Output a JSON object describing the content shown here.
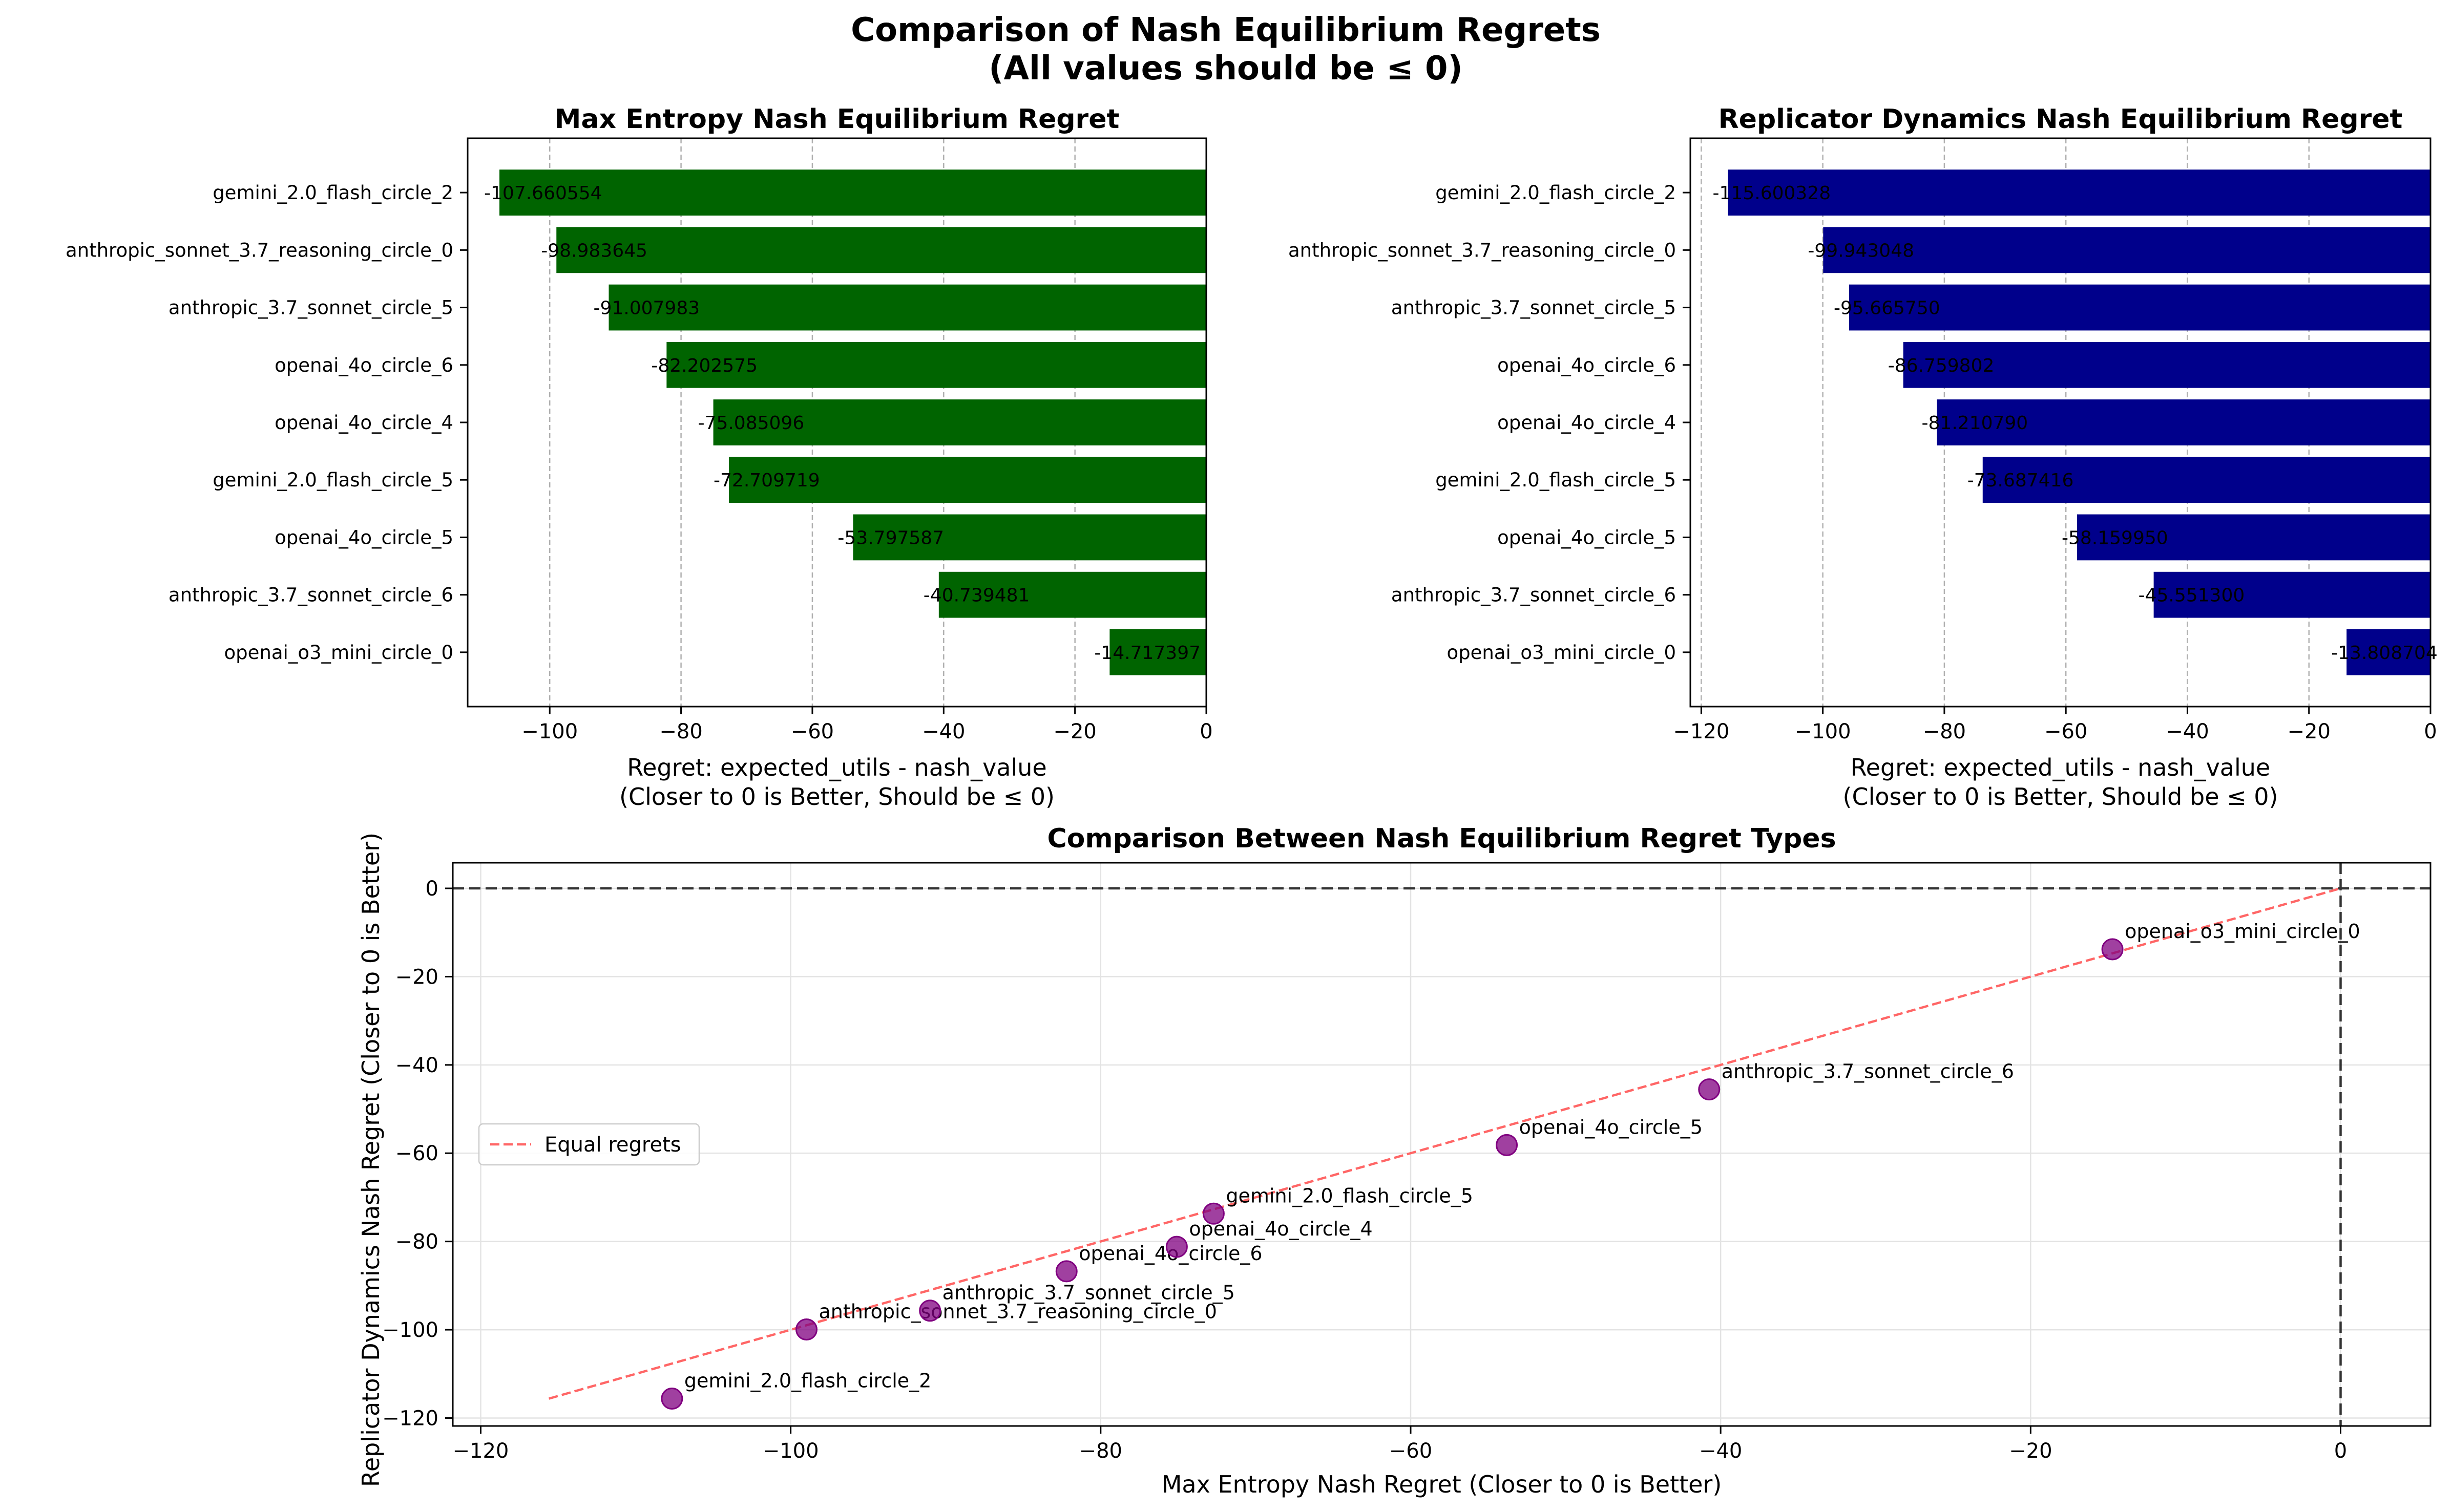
{
  "figure": {
    "title_line1": "Comparison of Nash Equilibrium Regrets",
    "title_line2": "(All values should be ≤ 0)"
  },
  "chart_data": [
    {
      "type": "bar",
      "orientation": "horizontal",
      "title": "Max Entropy Nash Equilibrium Regret",
      "xlabel_line1": "Regret: expected_utils - nash_value",
      "xlabel_line2": "(Closer to 0 is Better, Should be ≤ 0)",
      "xlim": [
        -112.5,
        0
      ],
      "xticks": [
        -100,
        -80,
        -60,
        -40,
        -20,
        0
      ],
      "xtick_labels": [
        "−100",
        "−80",
        "−60",
        "−40",
        "−20",
        "0"
      ],
      "grid": "vertical dashed",
      "color": "#006400",
      "categories": [
        "gemini_2.0_flash_circle_2",
        "anthropic_sonnet_3.7_reasoning_circle_0",
        "anthropic_3.7_sonnet_circle_5",
        "openai_4o_circle_6",
        "openai_4o_circle_4",
        "gemini_2.0_flash_circle_5",
        "openai_4o_circle_5",
        "anthropic_3.7_sonnet_circle_6",
        "openai_o3_mini_circle_0"
      ],
      "values": [
        -107.660554,
        -98.983645,
        -91.007983,
        -82.202575,
        -75.085096,
        -72.709719,
        -53.797587,
        -40.739481,
        -14.717397
      ],
      "value_labels": [
        "-107.660554",
        "-98.983645",
        "-91.007983",
        "-82.202575",
        "-75.085096",
        "-72.709719",
        "-53.797587",
        "-40.739481",
        "-14.717397"
      ]
    },
    {
      "type": "bar",
      "orientation": "horizontal",
      "title": "Replicator Dynamics Nash Equilibrium Regret",
      "xlabel_line1": "Regret: expected_utils - nash_value",
      "xlabel_line2": "(Closer to 0 is Better, Should be ≤ 0)",
      "xlim": [
        -121.8,
        0
      ],
      "xticks": [
        -120,
        -100,
        -80,
        -60,
        -40,
        -20,
        0
      ],
      "xtick_labels": [
        "−120",
        "−100",
        "−80",
        "−60",
        "−40",
        "−20",
        "0"
      ],
      "grid": "vertical dashed",
      "color": "#00008b",
      "categories": [
        "gemini_2.0_flash_circle_2",
        "anthropic_sonnet_3.7_reasoning_circle_0",
        "anthropic_3.7_sonnet_circle_5",
        "openai_4o_circle_6",
        "openai_4o_circle_4",
        "gemini_2.0_flash_circle_5",
        "openai_4o_circle_5",
        "anthropic_3.7_sonnet_circle_6",
        "openai_o3_mini_circle_0"
      ],
      "values": [
        -115.6,
        -99.94,
        -95.67,
        -86.76,
        -81.21,
        -73.69,
        -58.16,
        -45.55,
        -13.81
      ],
      "value_labels": [
        "-115.600328",
        "-99.943048",
        "-95.665750",
        "-86.759802",
        "-81.210790",
        "-73.687416",
        "-58.159950",
        "-45.551300",
        "-13.808704"
      ]
    },
    {
      "type": "scatter",
      "title": "Comparison Between Nash Equilibrium Regret Types",
      "xlabel": "Max Entropy Nash Regret (Closer to 0 is Better)",
      "ylabel": "Replicator Dynamics Nash Regret (Closer to 0 is Better)",
      "xlim": [
        -121.8,
        5.8
      ],
      "ylim": [
        -121.8,
        5.8
      ],
      "xticks": [
        -120,
        -100,
        -80,
        -60,
        -40,
        -20,
        0
      ],
      "xtick_labels": [
        "−120",
        "−100",
        "−80",
        "−60",
        "−40",
        "−20",
        "0"
      ],
      "yticks": [
        -120,
        -100,
        -80,
        -60,
        -40,
        -20,
        0
      ],
      "ytick_labels": [
        "−120",
        "−100",
        "−80",
        "−60",
        "−40",
        "−20",
        "0"
      ],
      "grid": true,
      "legend_position": "center-left",
      "legend_label": "Equal regrets",
      "point_color": "#800080",
      "line_color": "#ff6666",
      "points": [
        {
          "x": -107.66,
          "y": -115.6,
          "label": "gemini_2.0_flash_circle_2"
        },
        {
          "x": -98.98,
          "y": -99.94,
          "label": "anthropic_sonnet_3.7_reasoning_circle_0"
        },
        {
          "x": -91.01,
          "y": -95.67,
          "label": "anthropic_3.7_sonnet_circle_5"
        },
        {
          "x": -82.2,
          "y": -86.76,
          "label": "openai_4o_circle_6"
        },
        {
          "x": -75.09,
          "y": -81.21,
          "label": "openai_4o_circle_4"
        },
        {
          "x": -72.71,
          "y": -73.69,
          "label": "gemini_2.0_flash_circle_5"
        },
        {
          "x": -53.8,
          "y": -58.16,
          "label": "openai_4o_circle_5"
        },
        {
          "x": -40.74,
          "y": -45.55,
          "label": "anthropic_3.7_sonnet_circle_6"
        },
        {
          "x": -14.72,
          "y": -13.81,
          "label": "openai_o3_mini_circle_0"
        }
      ],
      "equal_line": {
        "from": -115.6,
        "to": 0
      }
    }
  ]
}
